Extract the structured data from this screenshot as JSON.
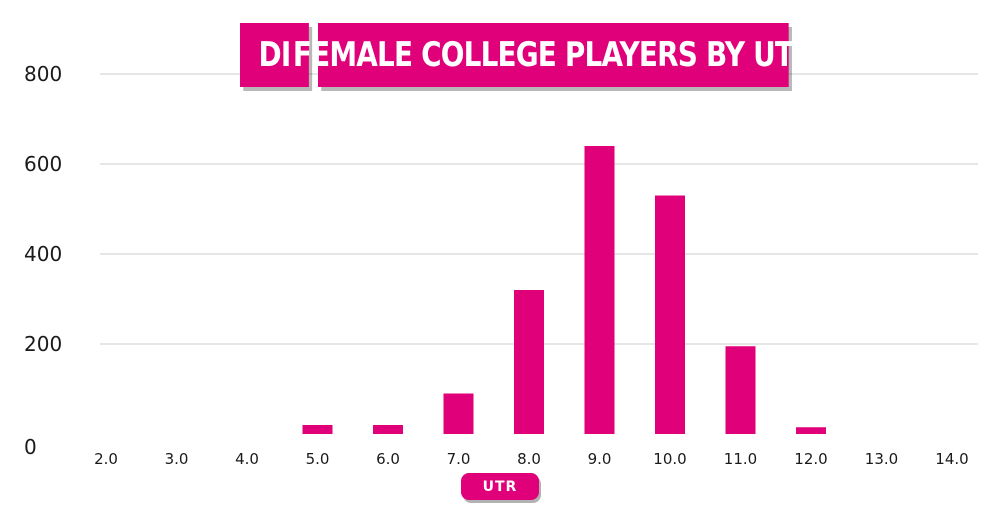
{
  "title_prefix": "DI",
  "title": "FEMALE COLLEGE PLAYERS BY UTR",
  "chart_data": {
    "type": "bar",
    "title": "FEMALE COLLEGE PLAYERS BY UTR",
    "xlabel": "UTR",
    "ylabel": "",
    "categories": [
      "2.0",
      "3.0",
      "4.0",
      "5.0",
      "6.0",
      "7.0",
      "8.0",
      "9.0",
      "10.0",
      "11.0",
      "12.0",
      "13.0",
      "14.0"
    ],
    "values": [
      0,
      0,
      0,
      20,
      20,
      90,
      320,
      640,
      530,
      195,
      15,
      0,
      0
    ],
    "bar_categories": [
      "5.0",
      "6.0",
      "7.0",
      "8.0",
      "9.0",
      "10.0",
      "11.0",
      "12.0"
    ],
    "ylim": [
      0,
      800
    ],
    "yticks": [
      0,
      200,
      400,
      600,
      800
    ],
    "grid": true,
    "legend": "none",
    "bar_color": "#e0007a",
    "grid_color": "#e6e6e6"
  }
}
